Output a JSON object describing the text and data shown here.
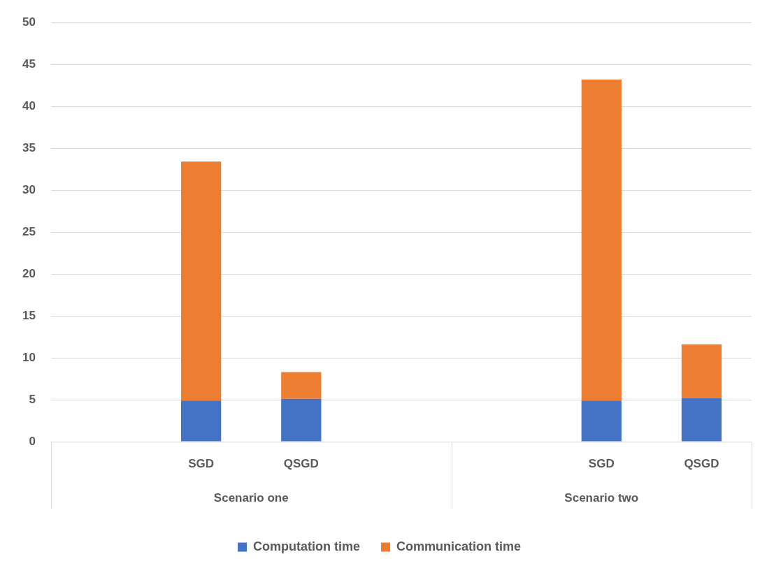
{
  "chart_data": {
    "type": "bar",
    "stacked": true,
    "categories": [
      null,
      "SGD",
      "QSGD",
      null,
      null,
      "SGD",
      "QSGD"
    ],
    "series": [
      {
        "name": "Computation time",
        "color": "#4472c4",
        "values": [
          null,
          4.9,
          5.1,
          null,
          null,
          4.9,
          5.2
        ]
      },
      {
        "name": "Communication time",
        "color": "#ed7d31",
        "values": [
          null,
          28.5,
          3.2,
          null,
          null,
          38.3,
          6.4
        ]
      }
    ],
    "annotations": [
      "Scenario one",
      "Scenario two"
    ],
    "ylim": [
      0,
      50
    ],
    "yticks": [
      0,
      5,
      10,
      15,
      20,
      25,
      30,
      35,
      40,
      45,
      50
    ],
    "grid": "y",
    "legend": "bottom"
  }
}
